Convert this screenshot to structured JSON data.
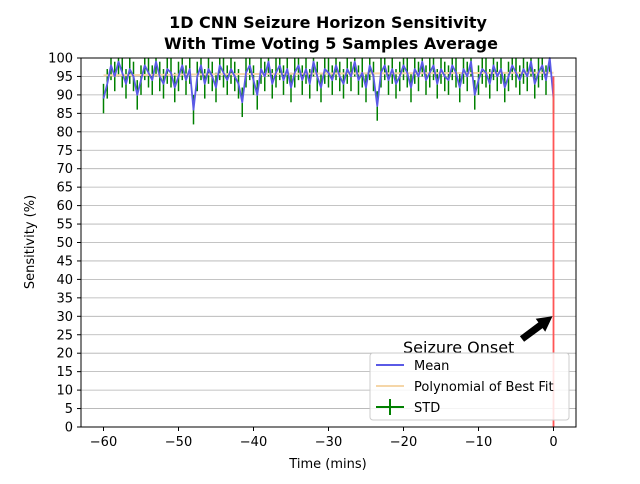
{
  "chart_data": {
    "type": "line",
    "title_line1": "1D CNN Seizure Horizon Sensitivity",
    "title_line2": "With Time Voting 5 Samples Average",
    "xlabel": "Time (mins)",
    "ylabel": "Sensitivity (%)",
    "xlim": [
      -63,
      3
    ],
    "ylim": [
      0,
      100
    ],
    "xticks": [
      -60,
      -50,
      -40,
      -30,
      -20,
      -10,
      0
    ],
    "xtick_labels": [
      "−60",
      "−50",
      "−40",
      "−30",
      "−20",
      "−10",
      "0"
    ],
    "yticks": [
      0,
      5,
      10,
      15,
      20,
      25,
      30,
      35,
      40,
      45,
      50,
      55,
      60,
      65,
      70,
      75,
      80,
      85,
      90,
      95,
      100
    ],
    "grid": "horizontal",
    "legend": {
      "placement": "lower right",
      "entries": [
        {
          "label": "Mean",
          "color": "#5a5ae6",
          "kind": "line"
        },
        {
          "label": "Polynomial of Best Fit",
          "color": "#f5d6a8",
          "kind": "line"
        },
        {
          "label": "STD",
          "color": "#008000",
          "kind": "errorbar"
        }
      ]
    },
    "annotation": {
      "text": "Seizure Onset",
      "x": 0,
      "y": 30
    },
    "onset_line": {
      "x": 0,
      "color": "#ff5555"
    },
    "series": [
      {
        "name": "Mean",
        "color": "#5a5ae6",
        "x": [
          -60.0,
          -59.5,
          -59.0,
          -58.5,
          -58.0,
          -57.5,
          -57.0,
          -56.5,
          -56.0,
          -55.5,
          -55.0,
          -54.5,
          -54.0,
          -53.5,
          -53.0,
          -52.5,
          -52.0,
          -51.5,
          -51.0,
          -50.5,
          -50.0,
          -49.5,
          -49.0,
          -48.5,
          -48.0,
          -47.5,
          -47.0,
          -46.5,
          -46.0,
          -45.5,
          -45.0,
          -44.5,
          -44.0,
          -43.5,
          -43.0,
          -42.5,
          -42.0,
          -41.5,
          -41.0,
          -40.5,
          -40.0,
          -39.5,
          -39.0,
          -38.5,
          -38.0,
          -37.5,
          -37.0,
          -36.5,
          -36.0,
          -35.5,
          -35.0,
          -34.5,
          -34.0,
          -33.5,
          -33.0,
          -32.5,
          -32.0,
          -31.5,
          -31.0,
          -30.5,
          -30.0,
          -29.5,
          -29.0,
          -28.5,
          -28.0,
          -27.5,
          -27.0,
          -26.5,
          -26.0,
          -25.5,
          -25.0,
          -24.5,
          -24.0,
          -23.5,
          -23.0,
          -22.5,
          -22.0,
          -21.5,
          -21.0,
          -20.5,
          -20.0,
          -19.5,
          -19.0,
          -18.5,
          -18.0,
          -17.5,
          -17.0,
          -16.5,
          -16.0,
          -15.5,
          -15.0,
          -14.5,
          -14.0,
          -13.5,
          -13.0,
          -12.5,
          -12.0,
          -11.5,
          -11.0,
          -10.5,
          -10.0,
          -9.5,
          -9.0,
          -8.5,
          -8.0,
          -7.5,
          -7.0,
          -6.5,
          -6.0,
          -5.5,
          -5.0,
          -4.5,
          -4.0,
          -3.5,
          -3.0,
          -2.5,
          -2.0,
          -1.5,
          -1.0,
          -0.5,
          0.0
        ],
        "y": [
          89,
          93,
          98,
          95,
          99,
          96,
          93,
          97,
          95,
          90,
          94,
          98,
          96,
          94,
          99,
          95,
          93,
          97,
          96,
          92,
          95,
          98,
          94,
          97,
          86,
          95,
          98,
          93,
          97,
          95,
          92,
          98,
          96,
          94,
          97,
          95,
          93,
          88,
          96,
          98,
          94,
          90,
          97,
          95,
          99,
          93,
          96,
          98,
          94,
          97,
          92,
          96,
          98,
          94,
          97,
          93,
          99,
          95,
          92,
          97,
          96,
          94,
          98,
          95,
          93,
          97,
          95,
          99,
          94,
          96,
          92,
          98,
          95,
          87,
          96,
          98,
          94,
          97,
          93,
          95,
          98,
          96,
          92,
          97,
          95,
          99,
          94,
          96,
          98,
          93,
          97,
          95,
          94,
          98,
          96,
          92,
          97,
          95,
          99,
          90,
          94,
          97,
          96,
          93,
          98,
          95,
          97,
          92,
          95,
          98,
          96,
          94,
          97,
          95,
          99,
          93,
          96,
          98,
          94,
          100,
          89
        ]
      },
      {
        "name": "Polynomial of Best Fit",
        "color": "#f5d6a8",
        "x": [
          -60,
          -45,
          -30,
          -15,
          0
        ],
        "y": [
          95.3,
          95.6,
          95.8,
          95.9,
          96.0
        ]
      },
      {
        "name": "STD",
        "color": "#008000",
        "note": "error bars around Mean",
        "spread": 4
      }
    ]
  }
}
